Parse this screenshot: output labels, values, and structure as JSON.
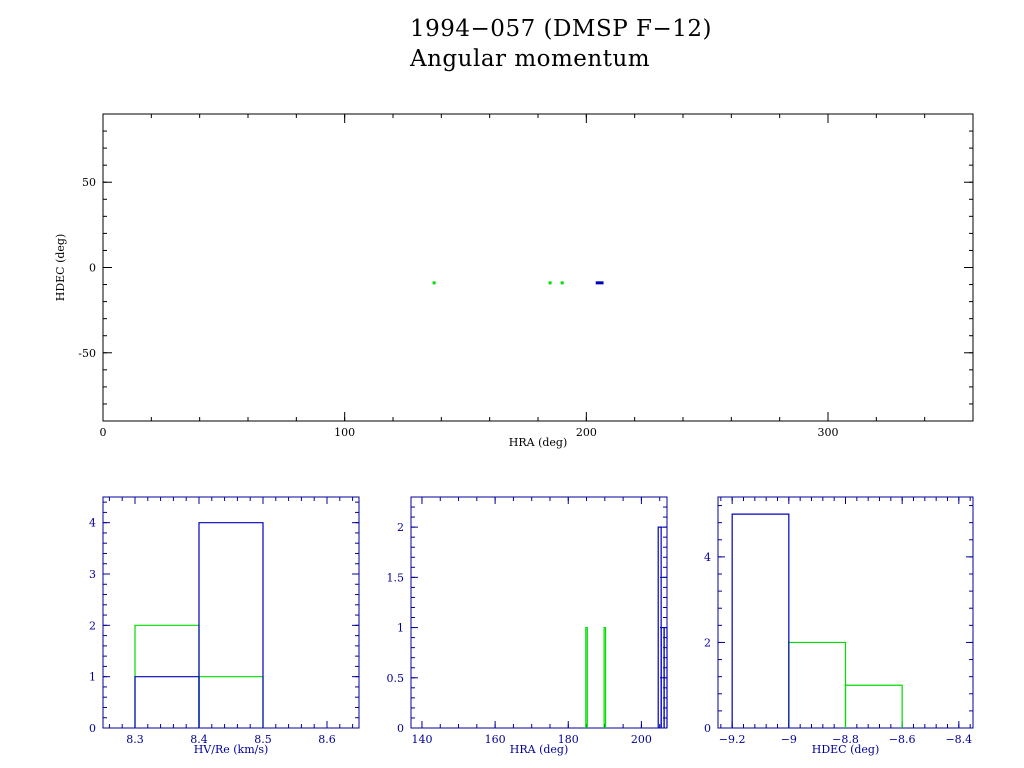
{
  "title": "1994−057 (DMSP F−12)",
  "subtitle": "Angular momentum",
  "colors": {
    "series_a": "#00dd00",
    "series_b": "#0000bb",
    "axes_main": "#000000",
    "axes_hist": "#000099"
  },
  "chart_data": [
    {
      "type": "scatter",
      "xlabel": "HRA (deg)",
      "ylabel": "HDEC (deg)",
      "xlim": [
        0,
        360
      ],
      "ylim": [
        -90,
        90
      ],
      "xticks": [
        0,
        100,
        200,
        300
      ],
      "yticks": [
        -50,
        0,
        50
      ],
      "series": [
        {
          "color": "#00dd00",
          "points": [
            [
              137,
              -9
            ],
            [
              185,
              -9
            ],
            [
              190,
              -9
            ]
          ]
        },
        {
          "color": "#0000bb",
          "points": [
            [
              204.5,
              -9
            ],
            [
              205.5,
              -9
            ],
            [
              206.5,
              -9
            ]
          ]
        }
      ]
    },
    {
      "type": "bar",
      "style": "histogram",
      "xlabel": "HV/Re (km/s)",
      "ylabel": "",
      "xlim": [
        8.25,
        8.65
      ],
      "ylim": [
        0,
        4.5
      ],
      "xticks": [
        8.3,
        8.4,
        8.5,
        8.6
      ],
      "xtick_labels": [
        "8.3",
        "8.4",
        "8.5",
        "8.6"
      ],
      "yticks": [
        0,
        1,
        2,
        3,
        4
      ],
      "ytick_labels": [
        "0",
        "1",
        "2",
        "3",
        "4"
      ],
      "series": [
        {
          "color": "#00dd00",
          "bins": [
            [
              8.3,
              8.4,
              2
            ],
            [
              8.4,
              8.5,
              1
            ]
          ]
        },
        {
          "color": "#0000bb",
          "bins": [
            [
              8.3,
              8.4,
              1
            ],
            [
              8.4,
              8.5,
              4
            ]
          ]
        }
      ]
    },
    {
      "type": "bar",
      "style": "histogram",
      "xlabel": "HRA (deg)",
      "ylabel": "",
      "xlim": [
        137,
        207
      ],
      "ylim": [
        0,
        2.3
      ],
      "xticks": [
        140,
        160,
        180,
        200
      ],
      "xtick_labels": [
        "140",
        "160",
        "180",
        "200"
      ],
      "yticks": [
        0,
        0.5,
        1,
        1.5,
        2
      ],
      "ytick_labels": [
        "0",
        "0.5",
        "1",
        "1.5",
        "2"
      ],
      "series": [
        {
          "color": "#00dd00",
          "bins": [
            [
              184.8,
              185.2,
              1
            ],
            [
              189.8,
              190.2,
              1
            ]
          ]
        },
        {
          "color": "#0000bb",
          "bins": [
            [
              204.6,
              205.4,
              2
            ],
            [
              205.4,
              206.2,
              1
            ],
            [
              206.2,
              207,
              1
            ]
          ]
        }
      ]
    },
    {
      "type": "bar",
      "style": "histogram",
      "xlabel": "HDEC (deg)",
      "ylabel": "",
      "xlim": [
        -9.25,
        -8.35
      ],
      "ylim": [
        0,
        5.4
      ],
      "xticks": [
        -9.2,
        -9,
        -8.8,
        -8.6,
        -8.4
      ],
      "xtick_labels": [
        "−9.2",
        "−9",
        "−8.8",
        "−8.6",
        "−8.4"
      ],
      "yticks": [
        0,
        2,
        4
      ],
      "ytick_labels": [
        "0",
        "2",
        "4"
      ],
      "series": [
        {
          "color": "#00dd00",
          "bins": [
            [
              -9.0,
              -8.8,
              2
            ],
            [
              -8.8,
              -8.6,
              1
            ]
          ]
        },
        {
          "color": "#0000bb",
          "bins": [
            [
              -9.2,
              -9.0,
              5
            ]
          ]
        }
      ]
    }
  ]
}
